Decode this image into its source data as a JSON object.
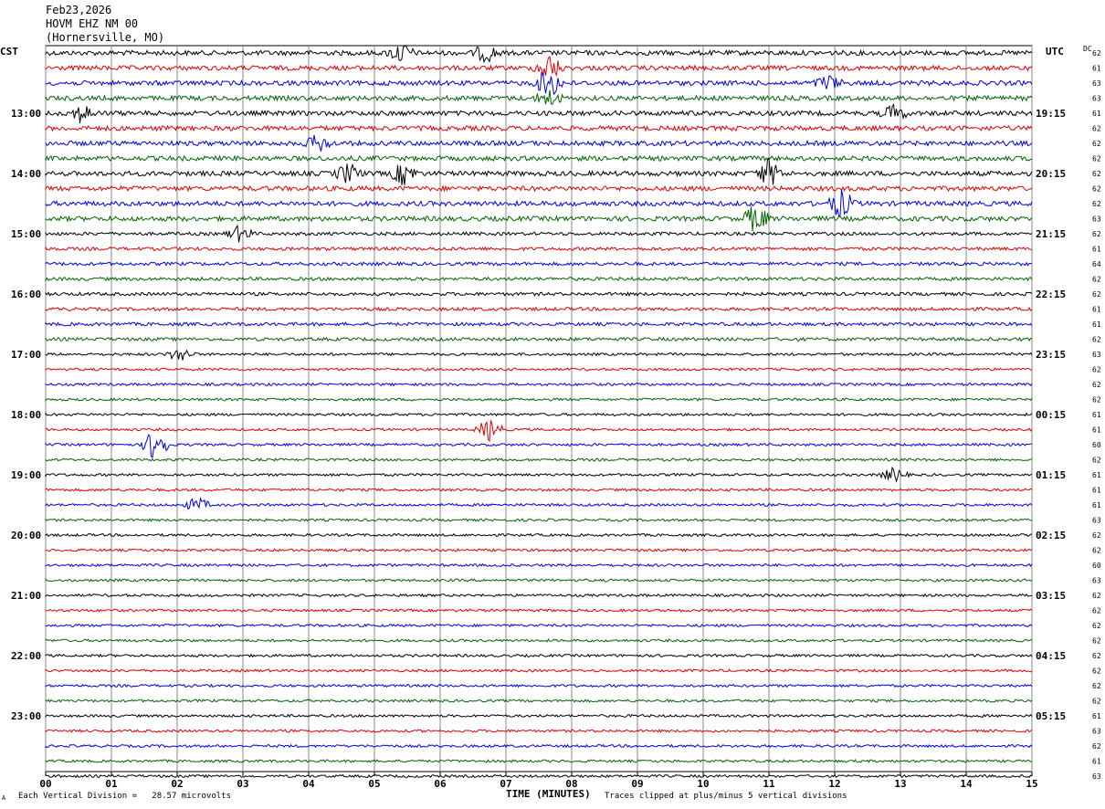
{
  "header": {
    "date": "Feb23,2026",
    "station": "HOVM EHZ NM 00",
    "location": "(Hornersville, MO)"
  },
  "left_zone": "CST",
  "right_zone": "UTC",
  "dc_label": "DC",
  "footer": {
    "scale_text": "Each Vertical Division =   28.57 microvolts",
    "x_title": "TIME (MINUTES)",
    "clip_text": "Traces clipped at plus/minus 5 vertical divisions",
    "corner_mark": "A"
  },
  "colors": [
    "#000000",
    "#e00000",
    "#0000e0",
    "#006400"
  ],
  "chart_data": {
    "type": "line",
    "title": "",
    "xlabel": "TIME (MINUTES)",
    "xlim": [
      0,
      15
    ],
    "x_ticks": [
      "00",
      "01",
      "02",
      "03",
      "04",
      "05",
      "06",
      "07",
      "08",
      "09",
      "10",
      "11",
      "12",
      "13",
      "14",
      "15"
    ],
    "left_hour_labels": [
      "13:00",
      "14:00",
      "15:00",
      "16:00",
      "17:00",
      "18:00",
      "19:00",
      "20:00",
      "21:00",
      "22:00",
      "23:00"
    ],
    "right_hour_labels": [
      "19:15",
      "20:15",
      "21:15",
      "22:15",
      "23:15",
      "00:15",
      "01:15",
      "02:15",
      "03:15",
      "04:15",
      "05:15"
    ],
    "dc_offsets": [
      "62",
      "61",
      "63",
      "63",
      "61",
      "62",
      "62",
      "62",
      "62",
      "62",
      "62",
      "63",
      "62",
      "61",
      "64",
      "62",
      "62",
      "61",
      "61",
      "62",
      "63",
      "62",
      "62",
      "62",
      "61",
      "61",
      "60",
      "62",
      "61",
      "61",
      "61",
      "63",
      "62",
      "62",
      "60",
      "63",
      "62",
      "62",
      "62",
      "62",
      "62",
      "62",
      "62",
      "62",
      "61",
      "63",
      "62",
      "61",
      "63"
    ],
    "events": [
      {
        "row": 0,
        "minute": 5.4,
        "amp": 1.4
      },
      {
        "row": 0,
        "minute": 6.7,
        "amp": 1.2
      },
      {
        "row": 1,
        "minute": 7.65,
        "amp": 2.0
      },
      {
        "row": 2,
        "minute": 7.65,
        "amp": 2.2
      },
      {
        "row": 2,
        "minute": 11.9,
        "amp": 1.1
      },
      {
        "row": 3,
        "minute": 7.65,
        "amp": 1.2
      },
      {
        "row": 4,
        "minute": 0.55,
        "amp": 1.3
      },
      {
        "row": 4,
        "minute": 12.9,
        "amp": 1.1
      },
      {
        "row": 6,
        "minute": 4.15,
        "amp": 1.2
      },
      {
        "row": 8,
        "minute": 4.6,
        "amp": 1.4
      },
      {
        "row": 8,
        "minute": 5.45,
        "amp": 1.6
      },
      {
        "row": 8,
        "minute": 11.0,
        "amp": 2.0
      },
      {
        "row": 10,
        "minute": 12.1,
        "amp": 2.0
      },
      {
        "row": 11,
        "minute": 10.8,
        "amp": 2.0
      },
      {
        "row": 12,
        "minute": 2.95,
        "amp": 1.1
      },
      {
        "row": 20,
        "minute": 2.05,
        "amp": 1.0
      },
      {
        "row": 25,
        "minute": 6.75,
        "amp": 1.6
      },
      {
        "row": 26,
        "minute": 1.68,
        "amp": 2.6
      },
      {
        "row": 28,
        "minute": 12.9,
        "amp": 1.0
      },
      {
        "row": 30,
        "minute": 2.3,
        "amp": 1.0
      }
    ]
  }
}
